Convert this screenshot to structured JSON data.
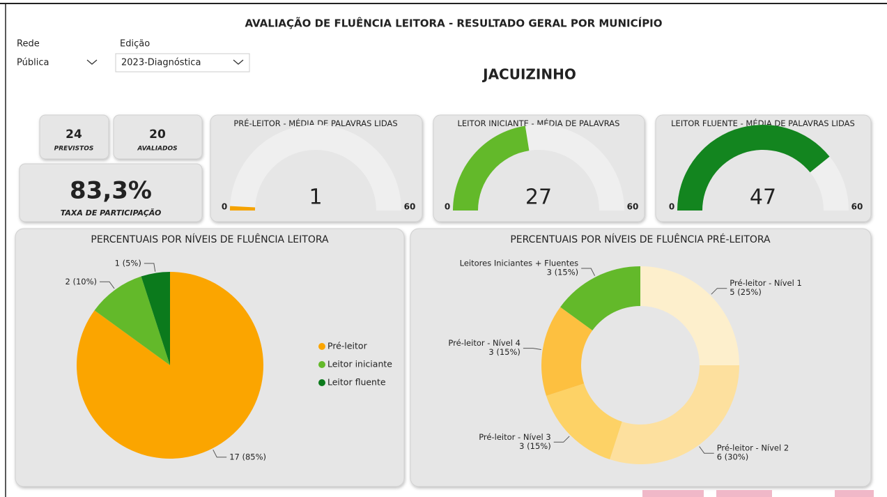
{
  "title": "AVALIAÇÃO DE FLUÊNCIA LEITORA -  RESULTADO GERAL POR MUNICÍPIO",
  "filters": [
    {
      "label": "Rede",
      "value": "Pública"
    },
    {
      "label": "Edição",
      "value": "2023-Diagnóstica"
    }
  ],
  "municipality": "JACUIZINHO",
  "cards": [
    {
      "value": 24,
      "label": "PREVISTOS"
    },
    {
      "value": 20,
      "label": "AVALIADOS"
    },
    {
      "value": 83.3,
      "value_label": "83,3%",
      "label": "TAXA DE PARTICIPAÇÃO"
    }
  ],
  "chart_data": [
    {
      "type": "gauge",
      "title": "PRÉ-LEITOR - MÉDIA DE PALAVRAS LIDAS",
      "value": 1,
      "range": [
        0,
        60
      ],
      "color": "#f5a300"
    },
    {
      "type": "gauge",
      "title": "LEITOR INICIANTE - MÉDIA DE PALAVRAS LIDAS",
      "value": 27,
      "range": [
        0,
        60
      ],
      "color": "#63b92a"
    },
    {
      "type": "gauge",
      "title": "LEITOR FLUENTE - MÉDIA DE PALAVRAS LIDAS",
      "value": 47,
      "range": [
        0,
        60
      ],
      "color": "#13851f"
    },
    {
      "type": "pie",
      "title": "PERCENTUAIS POR NÍVEIS DE FLUÊNCIA LEITORA",
      "categories": [
        "Pré-leitor",
        "Leitor iniciante",
        "Leitor fluente"
      ],
      "values": [
        17,
        2,
        1
      ],
      "value_labels": [
        "17 (85%)",
        "2 (10%)",
        "1 (5%)"
      ],
      "colors": [
        "#fba500",
        "#63b92a",
        "#0b7a1c"
      ],
      "legend": "right"
    },
    {
      "type": "donut",
      "title": "PERCENTUAIS POR NÍVEIS DE FLUÊNCIA PRÉ-LEITORA",
      "categories": [
        "Pré-leitor - Nível 1",
        "Pré-leitor - Nível 2",
        "Pré-leitor - Nível 3",
        "Pré-leitor - Nível 4",
        "Leitores Iniciantes + Fluentes"
      ],
      "values": [
        5,
        6,
        3,
        3,
        3
      ],
      "value_labels": [
        "5 (25%)",
        "6 (30%)",
        "3 (15%)",
        "3 (15%)",
        "3 (15%)"
      ],
      "colors": [
        "#fdefcc",
        "#fde09e",
        "#fdd266",
        "#fdc040",
        "#63b92a"
      ]
    }
  ]
}
